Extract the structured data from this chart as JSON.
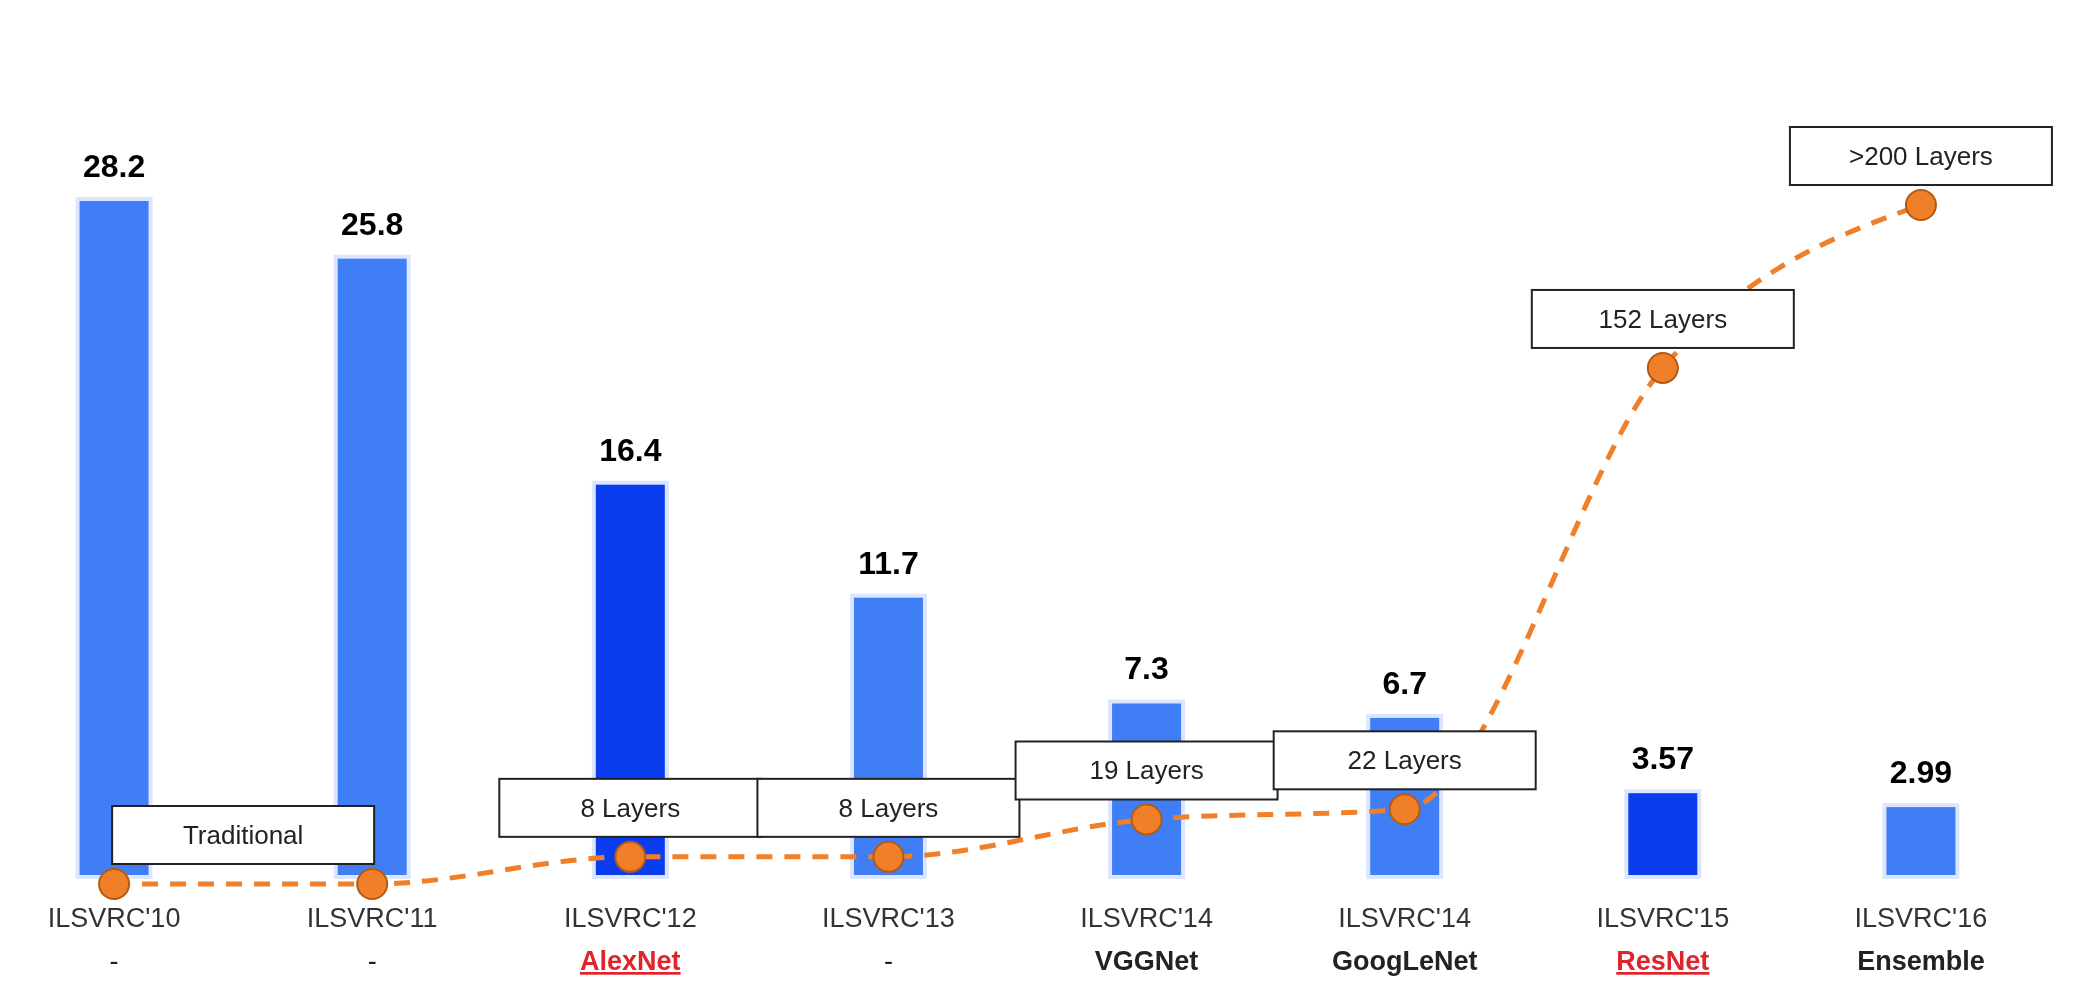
{
  "chart_data": {
    "type": "bar",
    "categories": [
      "ILSVRC'10\n-",
      "ILSVRC'11\n-",
      "ILSVRC'12\nAlexNet",
      "ILSVRC'13\n-",
      "ILSVRC'14\nVGGNet",
      "ILSVRC'14\nGoogLeNet",
      "ILSVRC'15\nResNet",
      "ILSVRC'16\nEnsemble"
    ],
    "data_labels": true,
    "tick_labels": "x",
    "annotations": [
      "Traditional"
    ],
    "series": [
      {
        "colors": [
          "#3f7ef5",
          "#3f7ef5",
          "#0a3cf0",
          "#3f7ef5",
          "#3f7ef5",
          "#3f7ef5",
          "#0a3cf0",
          "#3f7ef5"
        ],
        "values": [
          28.2,
          25.8,
          16.4,
          11.7,
          7.3,
          6.7,
          3.57,
          2.99
        ]
      },
      {
        "type": "line",
        "axis": "y2",
        "color": "#f07f2a",
        "marker": "circle",
        "line_style": "dashed",
        "values": [
          0,
          0,
          8,
          8,
          19,
          22,
          152,
          200
        ],
        "value_labels": [
          null,
          null,
          "8 Layers",
          "8 Layers",
          "19 Layers",
          "22 Layers",
          "152 Layers",
          ">200 Layers"
        ]
      }
    ]
  }
}
